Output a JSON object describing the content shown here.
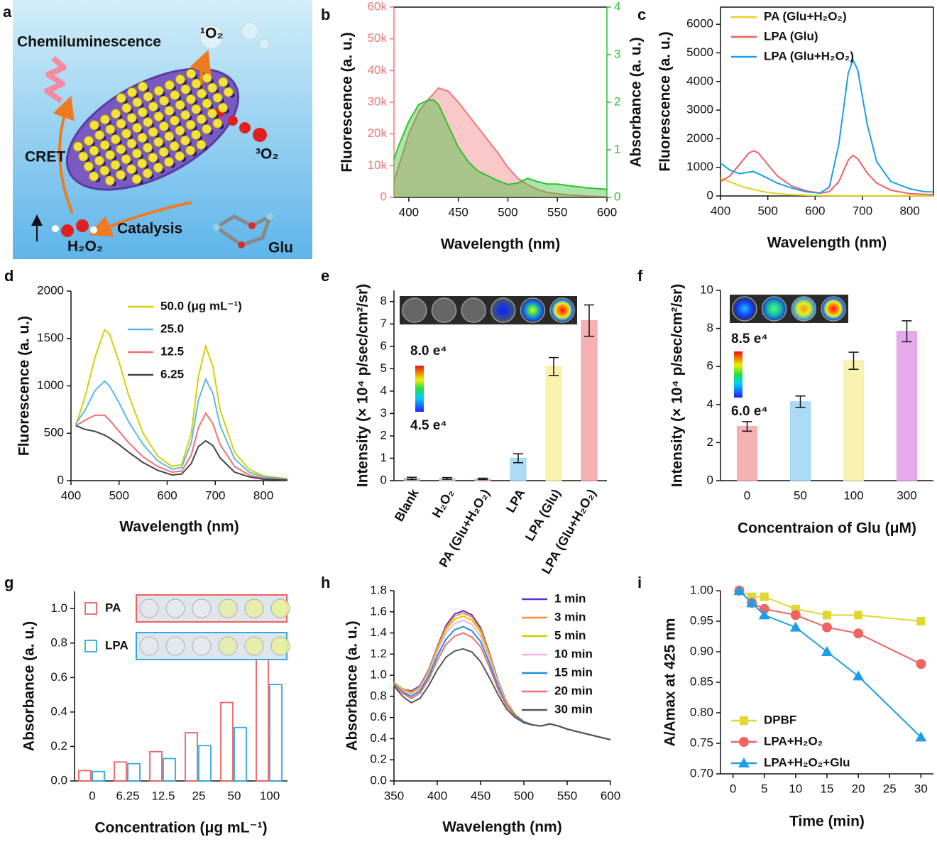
{
  "illustration": {
    "label": "a",
    "texts": {
      "chemiluminescence": "Chemiluminescence",
      "singlet_oxygen": "¹O₂",
      "cret": "CRET",
      "triplet_oxygen": "³O₂",
      "hydrogen_peroxide": "H₂O₂",
      "catalysis": "Catalysis",
      "glucose": "Glu"
    }
  },
  "chart_data": [
    {
      "label": "b",
      "type": "line",
      "xlabel": "Wavelength (nm)",
      "ylabel": "Fluorescence (a. u.)",
      "y2label": "Absorbance (a. u.)",
      "xlim": [
        385,
        600
      ],
      "xticks": [
        400,
        450,
        500,
        550,
        600
      ],
      "ylim": [
        0,
        60000
      ],
      "yticks": [
        0,
        {
          "value": 10000,
          "label": "10k"
        },
        {
          "value": 20000,
          "label": "20k"
        },
        {
          "value": 30000,
          "label": "30k"
        },
        {
          "value": 40000,
          "label": "40k"
        },
        {
          "value": 50000,
          "label": "50k"
        },
        {
          "value": 60000,
          "label": "60k"
        }
      ],
      "y2lim": [
        0,
        4
      ],
      "y2ticks": [
        0,
        1,
        2,
        3,
        4
      ],
      "series": [
        {
          "color": "#f07878",
          "fill": true,
          "x": [
            385,
            400,
            410,
            420,
            430,
            440,
            450,
            460,
            470,
            480,
            490,
            500,
            510,
            520,
            530,
            540,
            560,
            580,
            600
          ],
          "values": [
            5000,
            20000,
            27000,
            31000,
            34500,
            33500,
            30000,
            26000,
            22000,
            18000,
            14000,
            9500,
            6000,
            4000,
            2500,
            1500,
            800,
            400,
            200
          ]
        },
        {
          "color": "#2fbf2f",
          "fill": true,
          "axis": "y2",
          "x": [
            385,
            390,
            400,
            410,
            420,
            425,
            430,
            440,
            450,
            460,
            470,
            480,
            490,
            500,
            510,
            520,
            530,
            540,
            550,
            560,
            580,
            600
          ],
          "values": [
            0.8,
            1.1,
            1.6,
            1.95,
            2.05,
            2.05,
            1.95,
            1.5,
            1.05,
            0.75,
            0.55,
            0.45,
            0.35,
            0.27,
            0.3,
            0.4,
            0.33,
            0.28,
            0.28,
            0.25,
            0.2,
            0.17
          ]
        }
      ]
    },
    {
      "label": "c",
      "type": "line",
      "xlabel": "Wavelength (nm)",
      "ylabel": "Fluorescence (a. u.)",
      "legend": "upper left",
      "xlim": [
        400,
        850
      ],
      "xticks": [
        400,
        500,
        600,
        700,
        800
      ],
      "ylim": [
        0,
        6600
      ],
      "yticks": [
        0,
        1000,
        2000,
        3000,
        4000,
        5000,
        6000
      ],
      "series": [
        {
          "name": "PA (Glu+H₂O₂)",
          "color": "#e6d020",
          "x": [
            400,
            450,
            500,
            550,
            600,
            650,
            700,
            750,
            800,
            850
          ],
          "values": [
            620,
            300,
            120,
            40,
            20,
            10,
            5,
            5,
            5,
            5
          ]
        },
        {
          "name": "LPA (Glu)",
          "color": "#f06060",
          "x": [
            400,
            420,
            440,
            460,
            470,
            480,
            500,
            520,
            550,
            580,
            610,
            630,
            650,
            670,
            680,
            690,
            710,
            730,
            760,
            800,
            850
          ],
          "values": [
            500,
            700,
            1100,
            1500,
            1580,
            1500,
            1100,
            700,
            350,
            180,
            100,
            150,
            500,
            1250,
            1420,
            1300,
            800,
            450,
            200,
            80,
            40
          ]
        },
        {
          "name": "LPA (Glu+H₂O₂)",
          "color": "#1a9fe6",
          "x": [
            400,
            420,
            440,
            460,
            470,
            490,
            520,
            550,
            580,
            610,
            630,
            650,
            670,
            680,
            690,
            710,
            730,
            760,
            800,
            830,
            850
          ],
          "values": [
            1150,
            900,
            780,
            830,
            850,
            700,
            450,
            280,
            150,
            100,
            300,
            1800,
            4300,
            4750,
            4400,
            2500,
            1200,
            500,
            250,
            150,
            140
          ]
        }
      ]
    },
    {
      "label": "d",
      "type": "line",
      "xlabel": "Wavelength (nm)",
      "ylabel": "Fluorescence (a. u.)",
      "legend": "upper right",
      "xlim": [
        400,
        850
      ],
      "xticks": [
        400,
        500,
        600,
        700,
        800
      ],
      "ylim": [
        0,
        2000
      ],
      "yticks": [
        0,
        500,
        1000,
        1500,
        2000
      ],
      "x": [
        410,
        430,
        450,
        470,
        480,
        500,
        520,
        550,
        580,
        610,
        630,
        650,
        665,
        680,
        695,
        710,
        740,
        770,
        800,
        850
      ],
      "series": [
        {
          "name": "50.0 (μg mL⁻¹)",
          "color": "#d6d000",
          "values": [
            580,
            900,
            1300,
            1590,
            1550,
            1250,
            900,
            500,
            260,
            150,
            170,
            500,
            1100,
            1420,
            1200,
            750,
            300,
            120,
            50,
            20
          ]
        },
        {
          "name": "25.0",
          "color": "#5ab8ec",
          "values": [
            600,
            750,
            950,
            1050,
            1000,
            820,
            620,
            380,
            210,
            120,
            140,
            400,
            850,
            1070,
            920,
            580,
            230,
            90,
            40,
            15
          ]
        },
        {
          "name": "12.5",
          "color": "#f07070",
          "values": [
            580,
            640,
            690,
            690,
            640,
            520,
            400,
            250,
            150,
            90,
            100,
            270,
            560,
            710,
            600,
            380,
            150,
            60,
            25,
            10
          ]
        },
        {
          "name": "6.25",
          "color": "#444444",
          "values": [
            580,
            540,
            520,
            480,
            450,
            380,
            300,
            190,
            110,
            60,
            70,
            180,
            360,
            420,
            370,
            240,
            90,
            40,
            15,
            5
          ]
        }
      ]
    },
    {
      "label": "e",
      "type": "bar",
      "ylabel": "Intensity (× 10⁴ p/sec/cm²/sr)",
      "categories": [
        "Blank",
        "H₂O₂",
        "PA (Glu+H₂O₂)",
        "LPA",
        "LPA (Glu)",
        "LPA (Glu+H₂O₂)"
      ],
      "values": [
        0.1,
        0.1,
        0.08,
        1.0,
        5.1,
        7.15
      ],
      "errors": [
        0.05,
        0.04,
        0.03,
        0.2,
        0.4,
        0.7
      ],
      "colors": [
        "#b8b8b8",
        "#c8c8c8",
        "#e8a6e8",
        "#9fd4f5",
        "#f8f0a0",
        "#f5a4a4"
      ],
      "ylim": [
        0,
        8.5
      ],
      "yticks": [
        0,
        1,
        2,
        3,
        4,
        5,
        6,
        7,
        8
      ],
      "inset": {
        "scale_max": "8.0 e⁴",
        "scale_min": "4.5 e⁴"
      }
    },
    {
      "label": "f",
      "type": "bar",
      "xlabel": "Concentraion of Glu (μM)",
      "ylabel": "Intensity (× 10⁴ p/sec/cm²/sr)",
      "categories": [
        "0",
        "50",
        "100",
        "300"
      ],
      "values": [
        2.85,
        4.15,
        6.3,
        7.85
      ],
      "errors": [
        0.25,
        0.3,
        0.45,
        0.55
      ],
      "colors": [
        "#f5a4a4",
        "#9fd4f5",
        "#f8f0a0",
        "#e29ae8"
      ],
      "ylim": [
        0,
        10
      ],
      "yticks": [
        0,
        2,
        4,
        6,
        8,
        10
      ],
      "inset": {
        "scale_max": "8.5 e⁴",
        "scale_min": "6.0 e⁴"
      }
    },
    {
      "label": "g",
      "type": "bar",
      "hollow": true,
      "legend": "upper left",
      "xlabel": "Concentration (μg mL⁻¹)",
      "ylabel": "Absorbance (a. u.)",
      "categories": [
        "0",
        "6.25",
        "12.5",
        "25",
        "50",
        "100"
      ],
      "series": [
        {
          "name": "PA",
          "color": "#f06060",
          "values": [
            0.06,
            0.11,
            0.17,
            0.28,
            0.455,
            0.76
          ]
        },
        {
          "name": "LPA",
          "color": "#30a8e8",
          "values": [
            0.055,
            0.1,
            0.13,
            0.205,
            0.31,
            0.56
          ]
        }
      ],
      "ylim": [
        0,
        1.1
      ],
      "yticks": [
        {
          "value": 0,
          "label": "0.0"
        },
        0.2,
        0.4,
        0.6,
        0.8,
        {
          "value": 1,
          "label": "1.0"
        }
      ]
    },
    {
      "label": "h",
      "type": "line",
      "xlabel": "Wavelength (nm)",
      "ylabel": "Absorbance (a. u.)",
      "legend": "upper right",
      "xlim": [
        350,
        600
      ],
      "xticks": [
        350,
        400,
        450,
        500,
        550,
        600
      ],
      "ylim": [
        0,
        1.8
      ],
      "yticks": [
        {
          "value": 0,
          "label": "0.0"
        },
        0.2,
        0.4,
        0.6,
        0.8,
        {
          "value": 1,
          "label": "1.0"
        },
        1.2,
        1.4,
        1.6,
        1.8
      ],
      "x": [
        350,
        360,
        370,
        380,
        390,
        400,
        410,
        420,
        430,
        440,
        450,
        460,
        470,
        480,
        490,
        500,
        510,
        520,
        530,
        540,
        550,
        560,
        570,
        580,
        590,
        600
      ],
      "series": [
        {
          "name": "1 min",
          "color": "#5a2fd8",
          "values": [
            0.93,
            0.87,
            0.85,
            0.9,
            1.05,
            1.27,
            1.47,
            1.58,
            1.61,
            1.57,
            1.45,
            1.22,
            0.95,
            0.75,
            0.63,
            0.56,
            0.53,
            0.52,
            0.54,
            0.52,
            0.49,
            0.47,
            0.45,
            0.43,
            0.41,
            0.39
          ]
        },
        {
          "name": "3 min",
          "color": "#ff8c3a",
          "values": [
            0.93,
            0.87,
            0.84,
            0.89,
            1.04,
            1.26,
            1.45,
            1.56,
            1.59,
            1.55,
            1.43,
            1.21,
            0.94,
            0.75,
            0.63,
            0.56,
            0.53,
            0.52,
            0.54,
            0.52,
            0.49,
            0.47,
            0.45,
            0.43,
            0.41,
            0.39
          ]
        },
        {
          "name": "5 min",
          "color": "#d6c800",
          "values": [
            0.93,
            0.86,
            0.83,
            0.88,
            1.03,
            1.24,
            1.43,
            1.53,
            1.56,
            1.52,
            1.41,
            1.19,
            0.93,
            0.74,
            0.63,
            0.56,
            0.53,
            0.52,
            0.54,
            0.52,
            0.49,
            0.47,
            0.45,
            0.43,
            0.41,
            0.39
          ]
        },
        {
          "name": "10 min",
          "color": "#f2b0e6",
          "values": [
            0.92,
            0.85,
            0.82,
            0.87,
            1.01,
            1.22,
            1.4,
            1.49,
            1.52,
            1.48,
            1.37,
            1.16,
            0.92,
            0.73,
            0.62,
            0.56,
            0.53,
            0.52,
            0.54,
            0.52,
            0.49,
            0.47,
            0.45,
            0.43,
            0.41,
            0.39
          ]
        },
        {
          "name": "15 min",
          "color": "#1a90d8",
          "values": [
            0.92,
            0.84,
            0.8,
            0.85,
            0.99,
            1.18,
            1.34,
            1.43,
            1.46,
            1.42,
            1.32,
            1.12,
            0.9,
            0.72,
            0.62,
            0.56,
            0.53,
            0.52,
            0.54,
            0.52,
            0.49,
            0.47,
            0.45,
            0.43,
            0.41,
            0.39
          ]
        },
        {
          "name": "20 min",
          "color": "#f07070",
          "values": [
            0.91,
            0.83,
            0.78,
            0.83,
            0.96,
            1.14,
            1.29,
            1.37,
            1.4,
            1.36,
            1.27,
            1.08,
            0.87,
            0.71,
            0.61,
            0.55,
            0.53,
            0.52,
            0.54,
            0.52,
            0.49,
            0.47,
            0.45,
            0.43,
            0.41,
            0.39
          ]
        },
        {
          "name": "30 min",
          "color": "#555555",
          "values": [
            0.9,
            0.8,
            0.74,
            0.78,
            0.9,
            1.05,
            1.17,
            1.23,
            1.25,
            1.22,
            1.13,
            0.98,
            0.82,
            0.68,
            0.6,
            0.55,
            0.53,
            0.52,
            0.54,
            0.52,
            0.49,
            0.47,
            0.45,
            0.43,
            0.41,
            0.39
          ]
        }
      ]
    },
    {
      "label": "i",
      "type": "line",
      "xlabel": "Time (min)",
      "ylabel": "A/Amax at 425 nm",
      "legend": "lower left",
      "xlim": [
        -2,
        32
      ],
      "xticks": [
        0,
        5,
        10,
        15,
        20,
        25,
        30
      ],
      "ylim": [
        0.7,
        1.0
      ],
      "yticks": [
        {
          "value": 0.7,
          "label": "0.70"
        },
        0.75,
        {
          "value": 0.8,
          "label": "0.80"
        },
        0.85,
        {
          "value": 0.9,
          "label": "0.90"
        },
        0.95,
        {
          "value": 1,
          "label": "1.00"
        }
      ],
      "x": [
        1,
        3,
        5,
        10,
        15,
        20,
        30
      ],
      "series": [
        {
          "name": "DPBF",
          "color": "#e0d830",
          "marker": "square",
          "values": [
            1.0,
            0.99,
            0.99,
            0.97,
            0.96,
            0.96,
            0.95
          ]
        },
        {
          "name": "LPA+H₂O₂",
          "color": "#f06464",
          "marker": "circle",
          "values": [
            1.0,
            0.98,
            0.97,
            0.96,
            0.94,
            0.93,
            0.88
          ]
        },
        {
          "name": "LPA+H₂O₂+Glu",
          "color": "#1f9ee8",
          "marker": "triangle",
          "values": [
            1.0,
            0.98,
            0.96,
            0.94,
            0.9,
            0.86,
            0.76
          ]
        }
      ]
    }
  ]
}
